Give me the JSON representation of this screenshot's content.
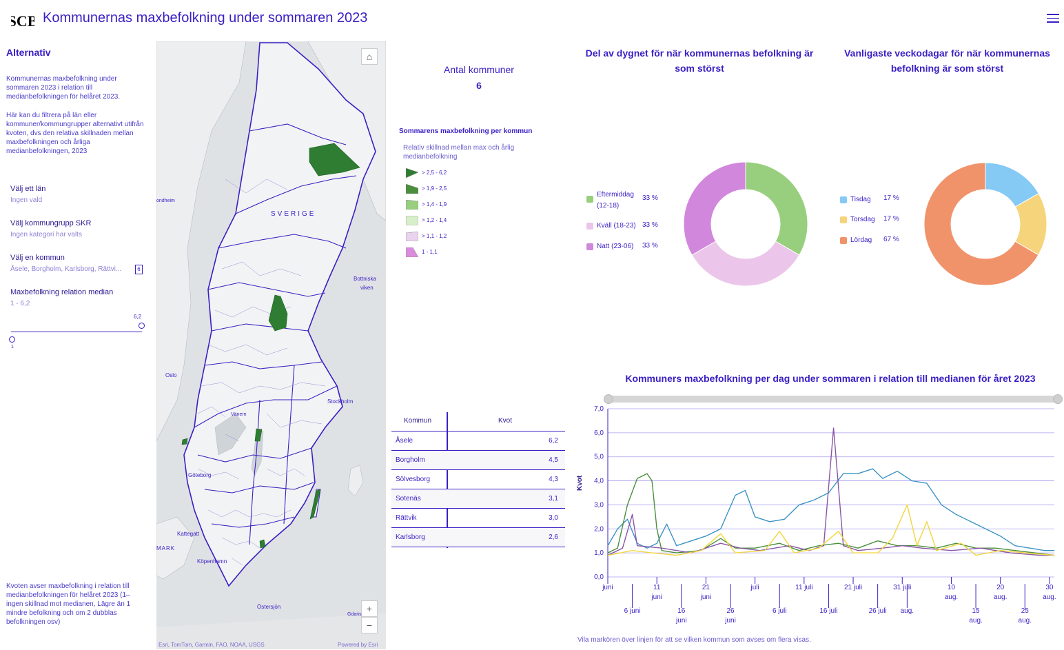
{
  "header": {
    "logo_text": "SCB",
    "title": "Kommunernas maxbefolkning under sommaren 2023"
  },
  "sidebar": {
    "heading": "Alternativ",
    "intro": "Kommunernas maxbefolkning under sommaren 2023 i relation till medianbefolkningen för helåret 2023.",
    "help": "Här kan du filtrera på län eller kommuner/kommungrupper alternativt utifrån kvoten, dvs den relativa skillnaden mellan maxbefolkningen och årliga medianbefolkningen, 2023",
    "filters": [
      {
        "label": "Välj ett län",
        "value": "Ingen vald"
      },
      {
        "label": "Välj kommungrupp SKR",
        "value": "Ingen kategori har valts"
      },
      {
        "label": "Välj en kommun",
        "value": "Åsele, Borgholm, Karlsborg, Rättvi...",
        "count": "6"
      },
      {
        "label": "Maxbefolkning relation median",
        "value": "1 - 6,2"
      }
    ],
    "slider": {
      "min_label": "1",
      "max_label": "6,2",
      "min": 1,
      "max": 6.2,
      "low": 1,
      "high": 6.2
    },
    "footnote": "Kvoten avser maxbefolkning i relation till medianbefolkningen för helåret 2023 (1– ingen skillnad mot medianen, Lägre än 1 mindre befolkning och om 2 dubblas befolkningen osv)"
  },
  "map": {
    "home_icon": "home-icon",
    "zoom_in": "+",
    "zoom_out": "−",
    "labels": {
      "sverige": "SVERIGE",
      "trondheim": "ondheim",
      "bottniska": "Bottniska",
      "viken": "viken",
      "oslo": "Oslo",
      "stockholm": "Stockholm",
      "vanern": "Vänern",
      "goteborg": "Göteborg",
      "kattegatt": "Kattegatt",
      "mark": "MARK",
      "kopenhamn": "Köpenhamn",
      "ostersjon": "Östersjön",
      "gdansk": "Gdańs"
    },
    "attribution": "Esri, TomTom, Garmin, FAO, NOAA, USGS",
    "powered": "Powered by Esri"
  },
  "kpi": {
    "label": "Antal kommuner",
    "value": "6"
  },
  "legend": {
    "title": "Sommarens maxbefolkning per kommun",
    "subtitle": "Relativ skillnad mellan max och årlig medianbefolkning",
    "items": [
      {
        "label": "> 2,5 - 6,2",
        "color": "#2e7d32"
      },
      {
        "label": "> 1,9 - 2,5",
        "color": "#4a8f3c"
      },
      {
        "label": "> 1,4 - 1,9",
        "color": "#98cf7e"
      },
      {
        "label": "> 1,2 - 1,4",
        "color": "#d8efc9"
      },
      {
        "label": "> 1,1 - 1,2",
        "color": "#ead3ee"
      },
      {
        "label": "1 - 1,1",
        "color": "#d98cdc"
      }
    ]
  },
  "table": {
    "headers": [
      "Kommun",
      "Kvot"
    ],
    "rows": [
      [
        "Åsele",
        "6,2"
      ],
      [
        "Borgholm",
        "4,5"
      ],
      [
        "Sölvesborg",
        "4,3"
      ],
      [
        "Sotenäs",
        "3,1"
      ],
      [
        "Rättvik",
        "3,0"
      ],
      [
        "Karlsborg",
        "2,6"
      ]
    ]
  },
  "charts": {
    "donut1_title": "Del av dygnet för när kommunernas befolkning är som störst",
    "donut2_title": "Vanligaste veckodagar för när kommunernas befolkning är som störst",
    "line_title": "Kommuners maxbefolkning per dag under sommaren i relation till medianen för året 2023",
    "line_ylabel": "Kvot",
    "footnote": "Vila markören över linjen för att  se vilken kommun som avses om flera visas."
  },
  "chart_data": [
    {
      "type": "pie",
      "title": "Del av dygnet för när kommunernas befolkning är som störst",
      "labels": [
        "Eftermiddag (12-18)",
        "Kväll (18-23)",
        "Natt (23-06)"
      ],
      "display_labels": [
        "Eftermiddag",
        "(12-18)",
        "Kväll (18-23)",
        "Natt (23-06)"
      ],
      "values": [
        33.3,
        33.3,
        33.3
      ],
      "value_labels": [
        "33 %",
        "33 %",
        "33 %"
      ],
      "colors": [
        "#98cf7e",
        "#ebc6ea",
        "#d187dc"
      ],
      "legend": "left"
    },
    {
      "type": "pie",
      "title": "Vanligaste veckodagar för när kommunernas befolkning är som störst",
      "labels": [
        "Tisdag",
        "Torsdag",
        "Lördag"
      ],
      "values": [
        16.7,
        16.7,
        66.6
      ],
      "value_labels": [
        "17 %",
        "17 %",
        "67 %"
      ],
      "colors": [
        "#85c9f5",
        "#f6d47c",
        "#f0936a"
      ],
      "legend": "left"
    },
    {
      "type": "line",
      "title": "Kommuners maxbefolkning per dag under sommaren i relation till medianen för året 2023",
      "ylabel": "Kvot",
      "ylim": [
        0,
        7
      ],
      "yticks": [
        "0,0",
        "1,0",
        "2,0",
        "3,0",
        "4,0",
        "5,0",
        "6,0",
        "7,0"
      ],
      "x_start": "2023-06-01",
      "x_end": "2023-08-31",
      "xticks_top": [
        {
          "label": "juni",
          "date": "2023-06-01"
        },
        {
          "label": "11\njuni",
          "date": "2023-06-11"
        },
        {
          "label": "21\njuni",
          "date": "2023-06-21"
        },
        {
          "label": "juli",
          "date": "2023-07-01"
        },
        {
          "label": "11 juli",
          "date": "2023-07-11"
        },
        {
          "label": "21 juli",
          "date": "2023-07-21"
        },
        {
          "label": "31 juli",
          "date": "2023-07-31"
        },
        {
          "label": "10\naug.",
          "date": "2023-08-10"
        },
        {
          "label": "20\naug.",
          "date": "2023-08-20"
        },
        {
          "label": "30\naug.",
          "date": "2023-08-30"
        }
      ],
      "xticks_bottom": [
        {
          "label": "6 juni",
          "date": "2023-06-06"
        },
        {
          "label": "16\njuni",
          "date": "2023-06-16"
        },
        {
          "label": "26\njuni",
          "date": "2023-06-26"
        },
        {
          "label": "6 juli",
          "date": "2023-07-06"
        },
        {
          "label": "16 juli",
          "date": "2023-07-16"
        },
        {
          "label": "26 juli",
          "date": "2023-07-26"
        },
        {
          "label": "aug.",
          "date": "2023-08-01"
        },
        {
          "label": "15\naug.",
          "date": "2023-08-15"
        },
        {
          "label": "25\naug.",
          "date": "2023-08-25"
        }
      ],
      "series": [
        {
          "color": "#3b93c4",
          "points": [
            [
              "2023-06-01",
              1.3
            ],
            [
              "2023-06-03",
              2.0
            ],
            [
              "2023-06-05",
              2.4
            ],
            [
              "2023-06-07",
              1.4
            ],
            [
              "2023-06-09",
              1.2
            ],
            [
              "2023-06-11",
              1.4
            ],
            [
              "2023-06-13",
              2.2
            ],
            [
              "2023-06-15",
              1.3
            ],
            [
              "2023-06-18",
              1.5
            ],
            [
              "2023-06-21",
              1.7
            ],
            [
              "2023-06-24",
              2.0
            ],
            [
              "2023-06-27",
              3.4
            ],
            [
              "2023-06-29",
              3.6
            ],
            [
              "2023-07-01",
              2.5
            ],
            [
              "2023-07-04",
              2.3
            ],
            [
              "2023-07-07",
              2.4
            ],
            [
              "2023-07-10",
              3.0
            ],
            [
              "2023-07-13",
              3.2
            ],
            [
              "2023-07-16",
              3.5
            ],
            [
              "2023-07-19",
              4.3
            ],
            [
              "2023-07-22",
              4.3
            ],
            [
              "2023-07-25",
              4.5
            ],
            [
              "2023-07-27",
              4.1
            ],
            [
              "2023-07-30",
              4.4
            ],
            [
              "2023-08-02",
              4.0
            ],
            [
              "2023-08-05",
              3.9
            ],
            [
              "2023-08-08",
              3.0
            ],
            [
              "2023-08-11",
              2.6
            ],
            [
              "2023-08-14",
              2.3
            ],
            [
              "2023-08-17",
              2.0
            ],
            [
              "2023-08-20",
              1.7
            ],
            [
              "2023-08-23",
              1.3
            ],
            [
              "2023-08-26",
              1.2
            ],
            [
              "2023-08-29",
              1.1
            ],
            [
              "2023-08-31",
              1.1
            ]
          ]
        },
        {
          "color": "#4a8f3c",
          "points": [
            [
              "2023-06-01",
              1.0
            ],
            [
              "2023-06-03",
              1.2
            ],
            [
              "2023-06-05",
              3.0
            ],
            [
              "2023-06-07",
              4.1
            ],
            [
              "2023-06-09",
              4.3
            ],
            [
              "2023-06-10",
              4.0
            ],
            [
              "2023-06-11",
              2.0
            ],
            [
              "2023-06-12",
              1.1
            ],
            [
              "2023-06-15",
              1.0
            ],
            [
              "2023-06-20",
              1.1
            ],
            [
              "2023-06-24",
              1.6
            ],
            [
              "2023-06-27",
              1.2
            ],
            [
              "2023-07-01",
              1.2
            ],
            [
              "2023-07-06",
              1.4
            ],
            [
              "2023-07-10",
              1.1
            ],
            [
              "2023-07-14",
              1.3
            ],
            [
              "2023-07-18",
              1.4
            ],
            [
              "2023-07-22",
              1.2
            ],
            [
              "2023-07-26",
              1.5
            ],
            [
              "2023-07-30",
              1.3
            ],
            [
              "2023-08-03",
              1.3
            ],
            [
              "2023-08-07",
              1.2
            ],
            [
              "2023-08-11",
              1.4
            ],
            [
              "2023-08-15",
              1.2
            ],
            [
              "2023-08-19",
              1.2
            ],
            [
              "2023-08-23",
              1.1
            ],
            [
              "2023-08-27",
              1.0
            ],
            [
              "2023-08-31",
              0.9
            ]
          ]
        },
        {
          "color": "#8a55a8",
          "points": [
            [
              "2023-06-01",
              0.9
            ],
            [
              "2023-06-04",
              1.2
            ],
            [
              "2023-06-06",
              2.6
            ],
            [
              "2023-06-07",
              1.3
            ],
            [
              "2023-06-12",
              1.2
            ],
            [
              "2023-06-18",
              1.0
            ],
            [
              "2023-06-24",
              1.4
            ],
            [
              "2023-06-28",
              1.2
            ],
            [
              "2023-07-02",
              1.1
            ],
            [
              "2023-07-08",
              1.3
            ],
            [
              "2023-07-12",
              1.1
            ],
            [
              "2023-07-15",
              1.3
            ],
            [
              "2023-07-17",
              6.2
            ],
            [
              "2023-07-19",
              1.3
            ],
            [
              "2023-07-22",
              1.1
            ],
            [
              "2023-07-27",
              1.2
            ],
            [
              "2023-07-31",
              1.3
            ],
            [
              "2023-08-04",
              1.2
            ],
            [
              "2023-08-10",
              1.1
            ],
            [
              "2023-08-16",
              1.2
            ],
            [
              "2023-08-22",
              1.0
            ],
            [
              "2023-08-28",
              0.9
            ],
            [
              "2023-08-31",
              0.9
            ]
          ]
        },
        {
          "color": "#f2d63c",
          "points": [
            [
              "2023-06-01",
              0.9
            ],
            [
              "2023-06-06",
              1.1
            ],
            [
              "2023-06-10",
              1.0
            ],
            [
              "2023-06-15",
              0.9
            ],
            [
              "2023-06-20",
              1.1
            ],
            [
              "2023-06-24",
              1.8
            ],
            [
              "2023-06-27",
              1.0
            ],
            [
              "2023-07-03",
              1.1
            ],
            [
              "2023-07-06",
              1.9
            ],
            [
              "2023-07-09",
              1.0
            ],
            [
              "2023-07-14",
              1.2
            ],
            [
              "2023-07-18",
              1.9
            ],
            [
              "2023-07-21",
              1.0
            ],
            [
              "2023-07-26",
              1.0
            ],
            [
              "2023-07-29",
              1.6
            ],
            [
              "2023-08-01",
              3.0
            ],
            [
              "2023-08-03",
              1.3
            ],
            [
              "2023-08-05",
              2.3
            ],
            [
              "2023-08-07",
              1.1
            ],
            [
              "2023-08-12",
              1.4
            ],
            [
              "2023-08-15",
              0.9
            ],
            [
              "2023-08-20",
              1.1
            ],
            [
              "2023-08-25",
              1.0
            ],
            [
              "2023-08-31",
              0.9
            ]
          ]
        }
      ]
    }
  ]
}
